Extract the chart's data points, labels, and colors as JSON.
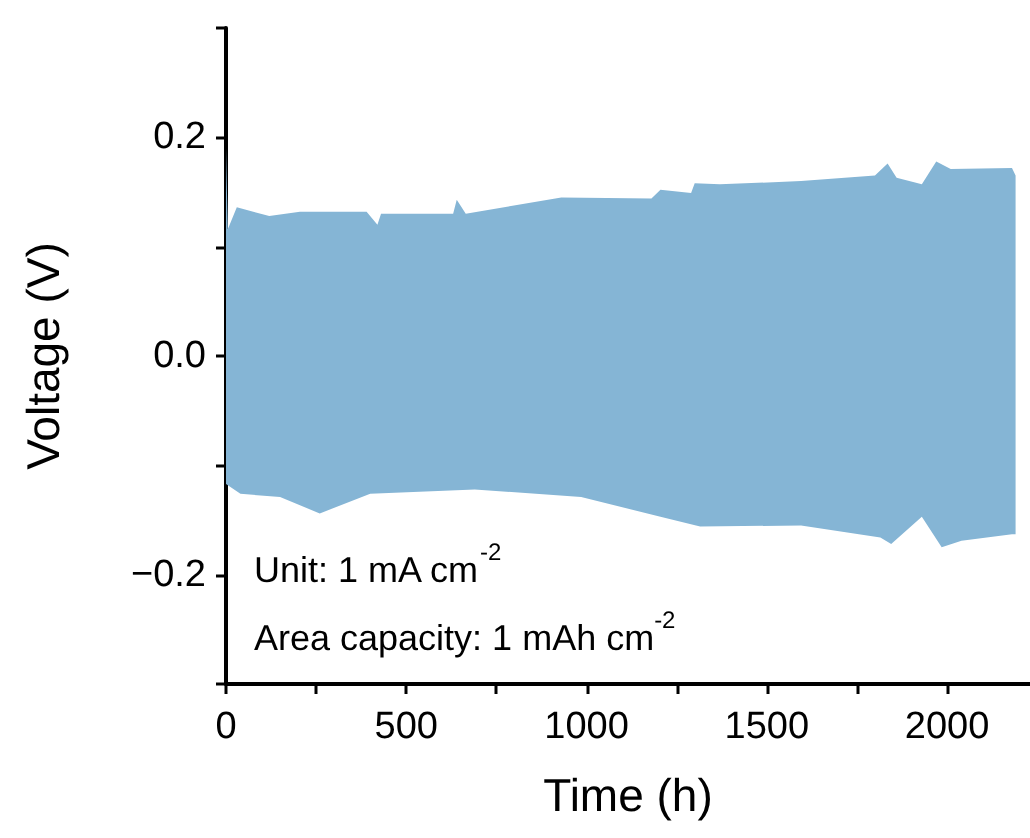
{
  "chart_data": {
    "type": "area",
    "xlabel": "Time (h)",
    "ylabel": "Voltage (V)",
    "xlim": [
      0,
      2230
    ],
    "ylim": [
      -0.3,
      0.3
    ],
    "xticks": [
      0,
      {
        "value": 250,
        "label": null
      },
      500,
      {
        "value": 750,
        "label": null
      },
      1000,
      {
        "value": 1250,
        "label": null
      },
      1500,
      {
        "value": 1750,
        "label": null
      },
      2000
    ],
    "yticks": [
      {
        "value": -0.3,
        "label": null
      },
      -0.2,
      {
        "value": -0.1,
        "label": null
      },
      {
        "value": 0,
        "label": "0.0"
      },
      {
        "value": 0.1,
        "label": null
      },
      0.2,
      {
        "value": 0.3,
        "label": null
      }
    ],
    "grid": false,
    "marker": "none",
    "annotations": [
      "Unit: 1 mA cm$^{-2}$",
      "Area capacity: 1 mAh cm$^{-2}$"
    ],
    "series": [
      {
        "color": "#85b5d5",
        "x": [
          0,
          5,
          30,
          120,
          205,
          390,
          420,
          430,
          630,
          640,
          665,
          930,
          1180,
          1205,
          1290,
          1300,
          1370,
          1595,
          1800,
          1835,
          1860,
          1930,
          1970,
          2010,
          2180,
          2190
        ],
        "values": [
          0.19,
          0.116,
          0.136,
          0.128,
          0.132,
          0.132,
          0.12,
          0.13,
          0.13,
          0.143,
          0.13,
          0.145,
          0.144,
          0.152,
          0.149,
          0.158,
          0.157,
          0.16,
          0.165,
          0.176,
          0.163,
          0.157,
          0.178,
          0.171,
          0.172,
          0.165
        ]
      },
      {
        "color": "#85b5d5",
        "x": [
          0,
          40,
          150,
          260,
          400,
          690,
          985,
          1205,
          1315,
          1595,
          1815,
          1845,
          1930,
          1985,
          2040,
          2180,
          2190
        ],
        "values": [
          -0.117,
          -0.126,
          -0.129,
          -0.144,
          -0.126,
          -0.122,
          -0.129,
          -0.147,
          -0.156,
          -0.155,
          -0.166,
          -0.172,
          -0.147,
          -0.175,
          -0.169,
          -0.163,
          -0.163
        ]
      }
    ]
  }
}
